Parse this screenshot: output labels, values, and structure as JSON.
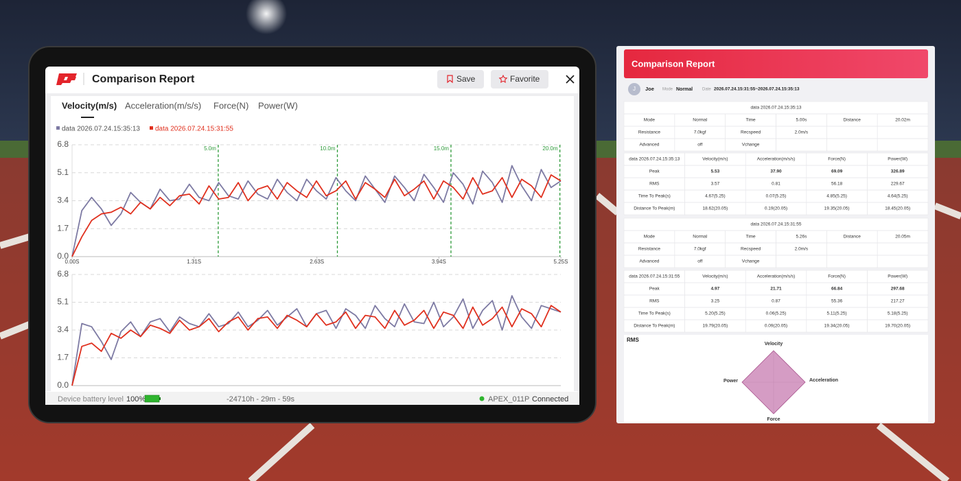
{
  "tablet": {
    "title": "Comparison Report",
    "buttons": [
      "Save",
      "Favorite"
    ],
    "tabs": [
      "Velocity(m/s)",
      "Acceleration(m/s/s)",
      "Force(N)",
      "Power(W)"
    ],
    "footer": {
      "battery_label": "Device battery level",
      "battery": "100%",
      "time": "-24710h - 29m - 59s",
      "device": "APEX_011P",
      "status": "Connected"
    }
  },
  "chart_data": [
    {
      "type": "line",
      "x": [
        0,
        0.105,
        0.21,
        0.315,
        0.42,
        0.525,
        0.63,
        0.735,
        0.84,
        0.945,
        1.05,
        1.155,
        1.26,
        1.365,
        1.47,
        1.575,
        1.68,
        1.785,
        1.89,
        1.995,
        2.1,
        2.205,
        2.31,
        2.415,
        2.52,
        2.625,
        2.73,
        2.835,
        2.94,
        3.045,
        3.15,
        3.255,
        3.36,
        3.465,
        3.57,
        3.675,
        3.78,
        3.885,
        3.99,
        4.095,
        4.2,
        4.305,
        4.41,
        4.515,
        4.62,
        4.725,
        4.83,
        4.935,
        5.04,
        5.145,
        5.25
      ],
      "xlim": [
        0,
        5.25
      ],
      "xticks": [
        {
          "value": 0,
          "label": "0.00S"
        },
        {
          "value": 1.31,
          "label": "1.31S"
        },
        {
          "value": 2.63,
          "label": "2.63S"
        },
        {
          "value": 3.94,
          "label": "3.94S"
        },
        {
          "value": 5.25,
          "label": "5.25S"
        }
      ],
      "ylim": [
        0,
        6.8
      ],
      "yticks": [
        {
          "value": 0,
          "label": "0.0"
        },
        1.7,
        3.4,
        5.1,
        6.8
      ],
      "grid": true,
      "markers": [
        {
          "x": 1.57,
          "label": "5.0m"
        },
        {
          "x": 2.85,
          "label": "10.0m"
        },
        {
          "x": 4.07,
          "label": "15.0m"
        },
        {
          "x": 5.24,
          "label": "20.0m"
        }
      ],
      "series": [
        {
          "name": "data 2026.07.24.15:35:13",
          "color": "#7d7aa3",
          "values": [
            0,
            2.8,
            3.6,
            2.9,
            1.9,
            2.6,
            3.9,
            3.3,
            2.9,
            4.1,
            3.4,
            3.5,
            4.4,
            3.6,
            3.4,
            4.5,
            3.7,
            3.5,
            4.6,
            3.8,
            3.5,
            4.7,
            3.9,
            3.4,
            4.7,
            4.0,
            3.5,
            4.8,
            4.0,
            3.4,
            4.9,
            4.1,
            3.3,
            4.9,
            4.2,
            3.4,
            5.0,
            4.2,
            3.3,
            5.1,
            4.4,
            3.2,
            5.2,
            4.5,
            3.3,
            5.53,
            4.3,
            3.4,
            5.3,
            4.2,
            4.6
          ]
        },
        {
          "name": "data 2026.07.24.15:31:55",
          "color": "#e0301e",
          "values": [
            0,
            1.2,
            2.2,
            2.6,
            2.7,
            3.0,
            2.6,
            3.3,
            2.9,
            3.6,
            3.1,
            3.7,
            3.8,
            3.2,
            4.3,
            3.5,
            3.6,
            4.5,
            3.4,
            4.1,
            4.3,
            3.5,
            4.5,
            4.0,
            3.6,
            4.6,
            3.7,
            4.0,
            4.6,
            3.5,
            4.5,
            4.1,
            3.6,
            4.7,
            3.7,
            4.1,
            4.6,
            3.5,
            4.6,
            4.2,
            3.5,
            4.8,
            3.8,
            4.0,
            4.8,
            3.6,
            4.7,
            4.3,
            3.6,
            4.97,
            4.6
          ]
        }
      ]
    },
    {
      "type": "line",
      "x": [
        0,
        0.105,
        0.21,
        0.315,
        0.42,
        0.525,
        0.63,
        0.735,
        0.84,
        0.945,
        1.05,
        1.155,
        1.26,
        1.365,
        1.47,
        1.575,
        1.68,
        1.785,
        1.89,
        1.995,
        2.1,
        2.205,
        2.31,
        2.415,
        2.52,
        2.625,
        2.73,
        2.835,
        2.94,
        3.045,
        3.15,
        3.255,
        3.36,
        3.465,
        3.57,
        3.675,
        3.78,
        3.885,
        3.99,
        4.095,
        4.2,
        4.305,
        4.41,
        4.515,
        4.62,
        4.725,
        4.83,
        4.935,
        5.04,
        5.145,
        5.25
      ],
      "xlim": [
        0,
        5.25
      ],
      "ylim": [
        0,
        6.8
      ],
      "yticks": [
        {
          "value": 0,
          "label": "0.0"
        },
        1.7,
        3.4,
        5.1,
        6.8
      ],
      "grid": true,
      "series": [
        {
          "color": "#7d7aa3",
          "values": [
            0,
            3.8,
            3.6,
            2.7,
            1.6,
            3.3,
            3.9,
            3.0,
            3.9,
            4.1,
            3.3,
            4.2,
            3.8,
            3.6,
            4.4,
            3.6,
            3.8,
            4.5,
            3.6,
            4.0,
            4.6,
            3.7,
            4.2,
            4.7,
            3.6,
            4.4,
            4.6,
            3.5,
            4.7,
            4.3,
            3.5,
            4.9,
            4.1,
            3.6,
            5.0,
            3.9,
            3.8,
            5.1,
            3.6,
            4.2,
            5.3,
            3.5,
            4.6,
            5.2,
            3.4,
            5.5,
            4.2,
            3.5,
            4.9,
            4.7,
            4.5
          ]
        },
        {
          "color": "#e0301e",
          "values": [
            0,
            2.4,
            2.6,
            2.1,
            3.2,
            2.9,
            3.4,
            3.0,
            3.7,
            3.5,
            3.2,
            4.0,
            3.4,
            3.6,
            4.1,
            3.3,
            3.9,
            4.2,
            3.4,
            4.1,
            4.2,
            3.5,
            4.3,
            4.0,
            3.6,
            4.4,
            3.7,
            3.9,
            4.5,
            3.5,
            4.3,
            4.2,
            3.5,
            4.6,
            3.7,
            4.0,
            4.6,
            3.5,
            4.5,
            4.3,
            3.5,
            4.8,
            3.7,
            4.1,
            4.8,
            3.6,
            4.7,
            4.4,
            3.6,
            4.9,
            4.5
          ]
        }
      ]
    },
    {
      "type": "radar",
      "title": "RMS",
      "categories": [
        "Velocity",
        "Acceleration",
        "Force",
        "Power"
      ],
      "values": [
        1,
        1,
        1,
        1
      ],
      "rlim": [
        0,
        1
      ],
      "color": "#c77bb0"
    }
  ],
  "report": {
    "title": "Comparison Report",
    "user": {
      "initial": "J",
      "name": "Joe",
      "mode_label": "Mode",
      "mode": "Normal",
      "date_label": "Date",
      "date": "2026.07.24.15:31:55~2026.07.24.15:35:13"
    },
    "tables": [
      {
        "title": "data 2026.07.24.15:35:13",
        "rows": [
          [
            "Mode",
            "Normal",
            "Time",
            "5.00s",
            "Distance",
            "20.02m"
          ],
          [
            "Resistance",
            "7.0kgf",
            "Recspeed",
            "2.0m/s"
          ],
          [
            "Advanced",
            "off",
            "Vchange"
          ]
        ]
      },
      {
        "header": [
          "data 2026.07.24.15:35:13",
          "Velocity(m/s)",
          "Acceleration(m/s/s)",
          "Force(N)",
          "Power(W)"
        ],
        "rows": [
          [
            "Peak",
            "5.53",
            "37.90",
            "69.09",
            "326.89"
          ],
          [
            "RMS",
            "3.57",
            "0.81",
            "56.18",
            "229.67"
          ],
          [
            "Time To Peak(s)",
            "4.67(5.25)",
            "0.07(5.25)",
            "4.85(5.25)",
            "4.64(5.25)"
          ],
          [
            "Distance To Peak(m)",
            "18.62(20.05)",
            "0.19(20.05)",
            "19.35(20.05)",
            "18.45(20.05)"
          ]
        ]
      },
      {
        "title": "data 2026.07.24.15:31:55",
        "rows": [
          [
            "Mode",
            "Normal",
            "Time",
            "5.26s",
            "Distance",
            "20.05m"
          ],
          [
            "Resistance",
            "7.0kgf",
            "Recspeed",
            "2.0m/s"
          ],
          [
            "Advanced",
            "off",
            "Vchange"
          ]
        ]
      },
      {
        "header": [
          "data 2026.07.24.15:31:55",
          "Velocity(m/s)",
          "Acceleration(m/s/s)",
          "Force(N)",
          "Power(W)"
        ],
        "rows": [
          [
            "Peak",
            "4.97",
            "21.71",
            "66.84",
            "297.68"
          ],
          [
            "RMS",
            "3.25",
            "0.87",
            "55.36",
            "217.27"
          ],
          [
            "Time To Peak(s)",
            "5.20(5.25)",
            "0.06(5.25)",
            "5.11(5.25)",
            "5.18(5.25)"
          ],
          [
            "Distance To Peak(m)",
            "19.79(20.05)",
            "0.09(20.05)",
            "19.34(20.05)",
            "19.70(20.05)"
          ]
        ]
      }
    ]
  }
}
